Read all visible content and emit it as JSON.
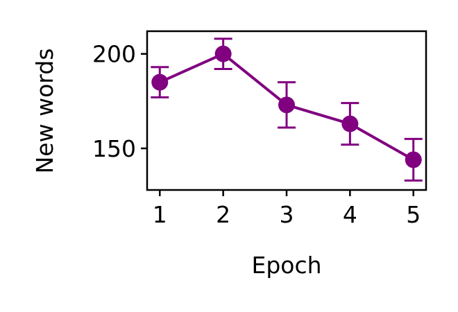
{
  "chart_data": {
    "type": "line",
    "title": "",
    "xlabel": "Epoch",
    "ylabel": "New words",
    "x": [
      1,
      2,
      3,
      4,
      5
    ],
    "series": [
      {
        "values": [
          185,
          200,
          173,
          163,
          144
        ],
        "error": [
          8,
          8,
          12,
          11,
          11
        ],
        "color": "#800080"
      }
    ],
    "xlim": [
      0.8,
      5.2
    ],
    "ylim": [
      128,
      212
    ],
    "xticks": [
      1,
      2,
      3,
      4,
      5
    ],
    "yticks": [
      150,
      200
    ],
    "grid": false,
    "legend": "none"
  }
}
